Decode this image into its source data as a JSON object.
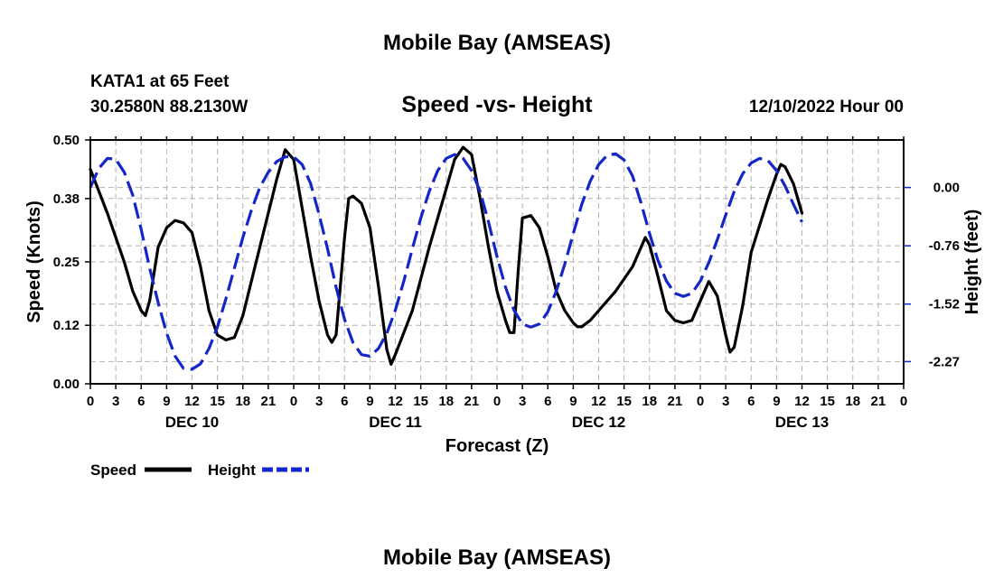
{
  "page": {
    "title_top": "Mobile Bay (AMSEAS)",
    "title_bottom": "Mobile Bay (AMSEAS)",
    "station": "KATA1 at 65 Feet",
    "coords": "30.2580N  88.2130W",
    "run": "12/10/2022 Hour 00"
  },
  "chart_data": {
    "type": "line",
    "title": "Speed -vs- Height",
    "xlabel": "Forecast (Z)",
    "ylabel_left": "Speed (Knots)",
    "ylabel_right": "Height (feet)",
    "x_range_hours": [
      0,
      96
    ],
    "x_tick_labels": [
      "0",
      "3",
      "6",
      "9",
      "12",
      "15",
      "18",
      "21",
      "0",
      "3",
      "6",
      "9",
      "12",
      "15",
      "18",
      "21",
      "0",
      "3",
      "6",
      "9",
      "12",
      "15",
      "18",
      "21",
      "0",
      "3",
      "6",
      "9",
      "12",
      "15",
      "18",
      "21",
      "0"
    ],
    "day_labels": [
      {
        "label": "DEC 10",
        "hour": 12
      },
      {
        "label": "DEC 11",
        "hour": 36
      },
      {
        "label": "DEC 12",
        "hour": 60
      },
      {
        "label": "DEC 13",
        "hour": 84
      }
    ],
    "left_axis": {
      "min": 0,
      "max": 0.5,
      "ticks": [
        0.0,
        0.12,
        0.25,
        0.38,
        0.5
      ],
      "tick_labels": [
        "0.00",
        "0.12",
        "0.25",
        "0.38",
        "0.50"
      ]
    },
    "right_axis": {
      "min": -2.56,
      "max": 0.62,
      "ticks": [
        0.0,
        -0.76,
        -1.52,
        -2.27
      ],
      "tick_labels": [
        "0.00",
        "-0.76",
        "-1.52",
        "-2.27"
      ]
    },
    "grid": true,
    "legend_position": "bottom-left",
    "series": [
      {
        "name": "Speed",
        "axis": "left",
        "color": "#000000",
        "style": "solid",
        "points": [
          [
            0,
            0.44
          ],
          [
            2,
            0.35
          ],
          [
            4,
            0.25
          ],
          [
            5,
            0.19
          ],
          [
            6,
            0.15
          ],
          [
            6.5,
            0.14
          ],
          [
            7,
            0.17
          ],
          [
            8,
            0.28
          ],
          [
            9,
            0.32
          ],
          [
            10,
            0.335
          ],
          [
            11,
            0.33
          ],
          [
            12,
            0.31
          ],
          [
            13,
            0.24
          ],
          [
            14,
            0.15
          ],
          [
            15,
            0.1
          ],
          [
            16,
            0.09
          ],
          [
            17,
            0.095
          ],
          [
            18,
            0.14
          ],
          [
            20,
            0.28
          ],
          [
            22,
            0.42
          ],
          [
            23,
            0.48
          ],
          [
            24,
            0.46
          ],
          [
            25,
            0.36
          ],
          [
            26,
            0.26
          ],
          [
            27,
            0.17
          ],
          [
            28,
            0.1
          ],
          [
            28.5,
            0.085
          ],
          [
            29,
            0.1
          ],
          [
            30,
            0.3
          ],
          [
            30.5,
            0.38
          ],
          [
            31,
            0.385
          ],
          [
            32,
            0.37
          ],
          [
            33,
            0.32
          ],
          [
            34,
            0.2
          ],
          [
            35,
            0.07
          ],
          [
            35.5,
            0.04
          ],
          [
            36,
            0.06
          ],
          [
            38,
            0.15
          ],
          [
            40,
            0.28
          ],
          [
            42,
            0.4
          ],
          [
            43,
            0.46
          ],
          [
            44,
            0.485
          ],
          [
            45,
            0.47
          ],
          [
            46,
            0.38
          ],
          [
            47,
            0.28
          ],
          [
            48,
            0.19
          ],
          [
            49,
            0.13
          ],
          [
            49.5,
            0.105
          ],
          [
            50,
            0.105
          ],
          [
            50.5,
            0.23
          ],
          [
            51,
            0.34
          ],
          [
            52,
            0.345
          ],
          [
            53,
            0.32
          ],
          [
            54,
            0.26
          ],
          [
            55,
            0.19
          ],
          [
            56,
            0.15
          ],
          [
            57,
            0.125
          ],
          [
            57.5,
            0.117
          ],
          [
            58,
            0.117
          ],
          [
            59,
            0.13
          ],
          [
            60,
            0.15
          ],
          [
            62,
            0.19
          ],
          [
            64,
            0.24
          ],
          [
            65,
            0.28
          ],
          [
            65.5,
            0.3
          ],
          [
            66,
            0.285
          ],
          [
            67,
            0.22
          ],
          [
            68,
            0.15
          ],
          [
            69,
            0.13
          ],
          [
            70,
            0.125
          ],
          [
            71,
            0.13
          ],
          [
            72,
            0.17
          ],
          [
            73,
            0.21
          ],
          [
            74,
            0.18
          ],
          [
            75,
            0.1
          ],
          [
            75.5,
            0.065
          ],
          [
            76,
            0.075
          ],
          [
            77,
            0.16
          ],
          [
            78,
            0.27
          ],
          [
            80,
            0.38
          ],
          [
            81,
            0.43
          ],
          [
            81.5,
            0.45
          ],
          [
            82,
            0.445
          ],
          [
            83,
            0.41
          ],
          [
            84,
            0.35
          ]
        ]
      },
      {
        "name": "Height",
        "axis": "right",
        "color": "#1426c8",
        "style": "dashed",
        "points": [
          [
            0,
            0.0
          ],
          [
            1,
            0.25
          ],
          [
            2,
            0.38
          ],
          [
            3,
            0.37
          ],
          [
            4,
            0.2
          ],
          [
            5,
            -0.1
          ],
          [
            6,
            -0.55
          ],
          [
            7,
            -1.05
          ],
          [
            8,
            -1.5
          ],
          [
            9,
            -1.9
          ],
          [
            10,
            -2.2
          ],
          [
            11,
            -2.36
          ],
          [
            12,
            -2.37
          ],
          [
            13,
            -2.3
          ],
          [
            14,
            -2.1
          ],
          [
            15,
            -1.82
          ],
          [
            16,
            -1.45
          ],
          [
            17,
            -1.05
          ],
          [
            18,
            -0.65
          ],
          [
            19,
            -0.3
          ],
          [
            20,
            0.0
          ],
          [
            21,
            0.2
          ],
          [
            22,
            0.34
          ],
          [
            23,
            0.4
          ],
          [
            24,
            0.4
          ],
          [
            25,
            0.3
          ],
          [
            26,
            0.05
          ],
          [
            27,
            -0.35
          ],
          [
            28,
            -0.8
          ],
          [
            29,
            -1.3
          ],
          [
            30,
            -1.72
          ],
          [
            31,
            -2.02
          ],
          [
            32,
            -2.18
          ],
          [
            33,
            -2.2
          ],
          [
            34,
            -2.1
          ],
          [
            35,
            -1.9
          ],
          [
            36,
            -1.6
          ],
          [
            37,
            -1.22
          ],
          [
            38,
            -0.8
          ],
          [
            39,
            -0.4
          ],
          [
            40,
            -0.05
          ],
          [
            41,
            0.22
          ],
          [
            42,
            0.38
          ],
          [
            43,
            0.43
          ],
          [
            44,
            0.38
          ],
          [
            45,
            0.22
          ],
          [
            46,
            -0.05
          ],
          [
            47,
            -0.45
          ],
          [
            48,
            -0.9
          ],
          [
            49,
            -1.3
          ],
          [
            50,
            -1.6
          ],
          [
            51,
            -1.78
          ],
          [
            52,
            -1.82
          ],
          [
            53,
            -1.78
          ],
          [
            54,
            -1.62
          ],
          [
            55,
            -1.35
          ],
          [
            56,
            -1.0
          ],
          [
            57,
            -0.6
          ],
          [
            58,
            -0.22
          ],
          [
            59,
            0.08
          ],
          [
            60,
            0.3
          ],
          [
            61,
            0.42
          ],
          [
            62,
            0.44
          ],
          [
            63,
            0.36
          ],
          [
            64,
            0.15
          ],
          [
            65,
            -0.2
          ],
          [
            66,
            -0.6
          ],
          [
            67,
            -0.95
          ],
          [
            68,
            -1.22
          ],
          [
            69,
            -1.38
          ],
          [
            70,
            -1.42
          ],
          [
            71,
            -1.38
          ],
          [
            72,
            -1.22
          ],
          [
            73,
            -0.98
          ],
          [
            74,
            -0.68
          ],
          [
            75,
            -0.36
          ],
          [
            76,
            -0.05
          ],
          [
            77,
            0.18
          ],
          [
            78,
            0.32
          ],
          [
            79,
            0.38
          ],
          [
            80,
            0.35
          ],
          [
            81,
            0.22
          ],
          [
            82,
            0.02
          ],
          [
            83,
            -0.22
          ],
          [
            84,
            -0.45
          ]
        ]
      }
    ]
  }
}
